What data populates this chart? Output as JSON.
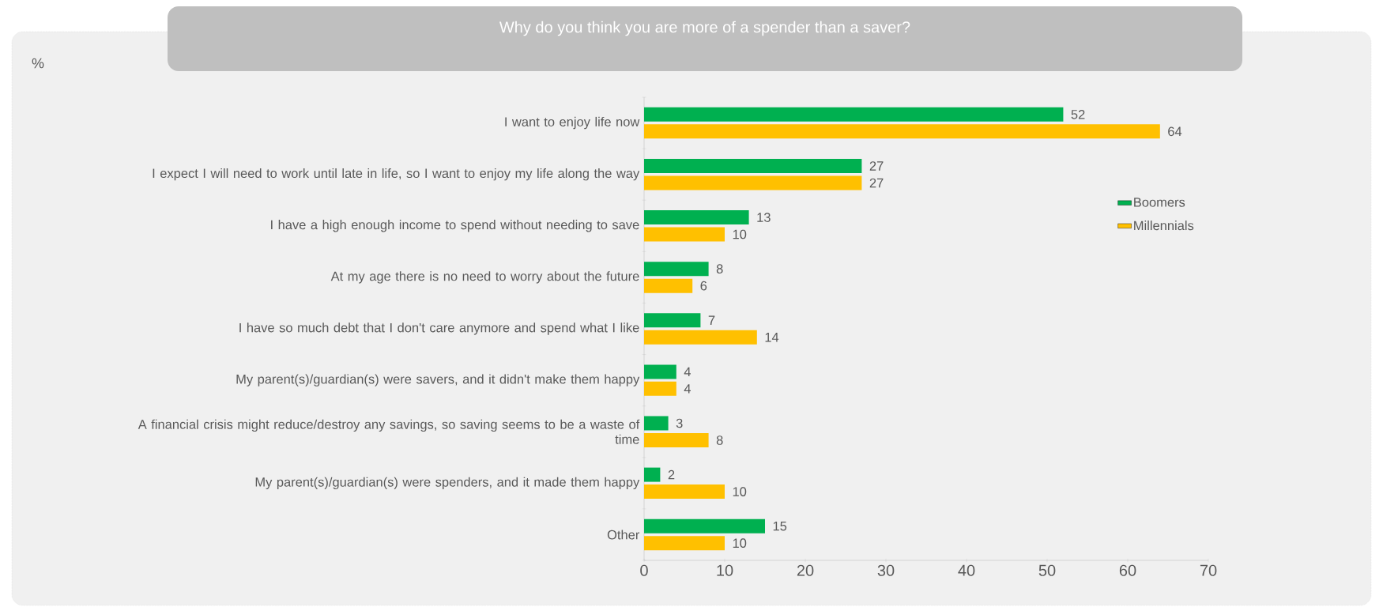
{
  "chart_data": {
    "type": "bar",
    "orientation": "horizontal",
    "title": "Why do you think you are more of a spender than a saver?",
    "annotations": [
      "%"
    ],
    "categories": [
      "I want to enjoy life now",
      "I expect I will need to work until late in life, so I want to enjoy my life along the way",
      "I have a high enough income to spend without needing to save",
      "At my age there is no need to worry about the future",
      "I have so much debt that I don't care anymore and spend what I like",
      "My parent(s)/guardian(s) were savers, and it didn't make them happy",
      "A financial crisis might reduce/destroy any savings, so saving seems to be a waste of time",
      "My parent(s)/guardian(s) were spenders, and it made them happy",
      "Other"
    ],
    "series": [
      {
        "name": "Boomers",
        "color": "#00b050",
        "values": [
          52,
          27,
          13,
          8,
          7,
          4,
          3,
          2,
          15
        ]
      },
      {
        "name": "Millennials",
        "color": "#ffc000",
        "values": [
          64,
          27,
          10,
          6,
          14,
          4,
          8,
          10,
          10
        ]
      }
    ],
    "xlim": [
      0,
      70
    ],
    "xticks": [
      0,
      10,
      20,
      30,
      40,
      50,
      60,
      70
    ],
    "data_labels": true,
    "legend": "right",
    "grid": false
  }
}
